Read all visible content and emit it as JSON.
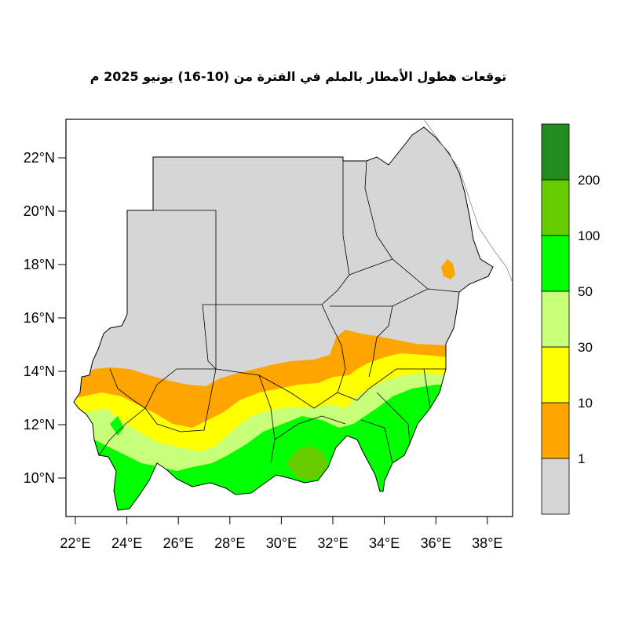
{
  "title": "توقعات هطول الأمطار بالملم في الفترة من (10-16) يونيو 2025 م",
  "axes": {
    "lon_ticks": [
      "22°E",
      "24°E",
      "26°E",
      "28°E",
      "30°E",
      "32°E",
      "34°E",
      "36°E",
      "38°E"
    ],
    "lat_ticks": [
      "10°N",
      "12°N",
      "14°N",
      "16°N",
      "18°N",
      "20°N",
      "22°N"
    ]
  },
  "colorbar": {
    "labels": [
      "1",
      "10",
      "30",
      "50",
      "100",
      "200"
    ],
    "colors": [
      "#d6d6d6",
      "#ffa500",
      "#ffff00",
      "#c8ff7a",
      "#00ff00",
      "#66cc00",
      "#228b22"
    ]
  }
}
